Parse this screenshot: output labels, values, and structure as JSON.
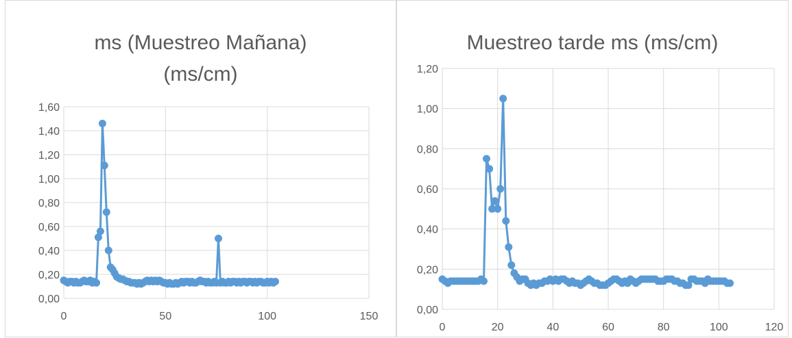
{
  "charts": [
    {
      "title_line1": "ms (Muestreo Mañana)",
      "title_line2": "(ms/cm)"
    },
    {
      "title_line1": "Muestreo tarde ms (ms/cm)"
    }
  ],
  "chart_data": [
    {
      "type": "scatter",
      "title": "ms (Muestreo Mañana) (ms/cm)",
      "xlim": [
        0,
        150
      ],
      "ylim": [
        0,
        1.6
      ],
      "xticks": [
        0,
        50,
        100,
        150
      ],
      "yticks": [
        0,
        0.2,
        0.4,
        0.6,
        0.8,
        1.0,
        1.2,
        1.4,
        1.6
      ],
      "x_tick_labels": [
        "0",
        "50",
        "100",
        "150"
      ],
      "y_tick_labels": [
        "0,00",
        "0,20",
        "0,40",
        "0,60",
        "0,80",
        "1,00",
        "1,20",
        "1,40",
        "1,60"
      ],
      "grid": true,
      "legend": "none",
      "color": "#5b9bd5",
      "series": [
        {
          "x": [
            0,
            1,
            2,
            3,
            4,
            5,
            6,
            7,
            8,
            9,
            10,
            11,
            12,
            13,
            14,
            15,
            16,
            17,
            18,
            19,
            20,
            21,
            22,
            23,
            24,
            25,
            26,
            27,
            28,
            29,
            30,
            31,
            32,
            33,
            34,
            35,
            36,
            37,
            38,
            39,
            40,
            41,
            42,
            43,
            44,
            45,
            46,
            47,
            48,
            49,
            50,
            51,
            52,
            53,
            54,
            55,
            56,
            57,
            58,
            59,
            60,
            61,
            62,
            63,
            64,
            65,
            66,
            67,
            68,
            69,
            70,
            71,
            72,
            73,
            74,
            75,
            76,
            77,
            78,
            79,
            80,
            81,
            82,
            83,
            84,
            85,
            86,
            87,
            88,
            89,
            90,
            91,
            92,
            93,
            94,
            95,
            96,
            97,
            98,
            99,
            100,
            101,
            102,
            103,
            104
          ],
          "y": [
            0.15,
            0.14,
            0.13,
            0.14,
            0.14,
            0.13,
            0.14,
            0.13,
            0.13,
            0.14,
            0.15,
            0.14,
            0.14,
            0.15,
            0.13,
            0.14,
            0.13,
            0.51,
            0.56,
            1.46,
            1.11,
            0.72,
            0.4,
            0.26,
            0.24,
            0.21,
            0.18,
            0.17,
            0.16,
            0.16,
            0.15,
            0.14,
            0.14,
            0.13,
            0.13,
            0.13,
            0.12,
            0.13,
            0.12,
            0.13,
            0.14,
            0.15,
            0.14,
            0.15,
            0.14,
            0.15,
            0.14,
            0.15,
            0.14,
            0.13,
            0.13,
            0.12,
            0.13,
            0.12,
            0.12,
            0.13,
            0.12,
            0.13,
            0.14,
            0.13,
            0.14,
            0.14,
            0.13,
            0.14,
            0.13,
            0.13,
            0.14,
            0.15,
            0.14,
            0.14,
            0.13,
            0.14,
            0.13,
            0.13,
            0.14,
            0.13,
            0.5,
            0.13,
            0.14,
            0.13,
            0.13,
            0.14,
            0.13,
            0.14,
            0.14,
            0.13,
            0.14,
            0.13,
            0.14,
            0.14,
            0.13,
            0.14,
            0.14,
            0.13,
            0.14,
            0.13,
            0.14,
            0.14,
            0.13,
            0.13,
            0.14,
            0.13,
            0.14,
            0.13,
            0.14
          ]
        }
      ]
    },
    {
      "type": "scatter",
      "title": "Muestreo tarde ms (ms/cm)",
      "xlim": [
        0,
        120
      ],
      "ylim": [
        0,
        1.2
      ],
      "xticks": [
        0,
        20,
        40,
        60,
        80,
        100,
        120
      ],
      "yticks": [
        0,
        0.2,
        0.4,
        0.6,
        0.8,
        1.0,
        1.2
      ],
      "x_tick_labels": [
        "0",
        "20",
        "40",
        "60",
        "80",
        "100",
        "120"
      ],
      "y_tick_labels": [
        "0,00",
        "0,20",
        "0,40",
        "0,60",
        "0,80",
        "1,00",
        "1,20"
      ],
      "grid": true,
      "legend": "none",
      "color": "#5b9bd5",
      "series": [
        {
          "x": [
            0,
            1,
            2,
            3,
            4,
            5,
            6,
            7,
            8,
            9,
            10,
            11,
            12,
            13,
            14,
            15,
            16,
            17,
            18,
            19,
            20,
            21,
            22,
            23,
            24,
            25,
            26,
            27,
            28,
            29,
            30,
            31,
            32,
            33,
            34,
            35,
            36,
            37,
            38,
            39,
            40,
            41,
            42,
            43,
            44,
            45,
            46,
            47,
            48,
            49,
            50,
            51,
            52,
            53,
            54,
            55,
            56,
            57,
            58,
            59,
            60,
            61,
            62,
            63,
            64,
            65,
            66,
            67,
            68,
            69,
            70,
            71,
            72,
            73,
            74,
            75,
            76,
            77,
            78,
            79,
            80,
            81,
            82,
            83,
            84,
            85,
            86,
            87,
            88,
            89,
            90,
            91,
            92,
            93,
            94,
            95,
            96,
            97,
            98,
            99,
            100,
            101,
            102,
            103,
            104
          ],
          "y": [
            0.15,
            0.14,
            0.13,
            0.14,
            0.14,
            0.14,
            0.14,
            0.14,
            0.14,
            0.14,
            0.14,
            0.14,
            0.14,
            0.14,
            0.15,
            0.14,
            0.75,
            0.7,
            0.5,
            0.54,
            0.5,
            0.6,
            1.05,
            0.44,
            0.31,
            0.22,
            0.18,
            0.16,
            0.14,
            0.15,
            0.15,
            0.13,
            0.12,
            0.13,
            0.12,
            0.13,
            0.13,
            0.14,
            0.14,
            0.15,
            0.14,
            0.15,
            0.14,
            0.15,
            0.15,
            0.14,
            0.13,
            0.14,
            0.13,
            0.13,
            0.12,
            0.13,
            0.14,
            0.15,
            0.14,
            0.13,
            0.13,
            0.12,
            0.12,
            0.12,
            0.13,
            0.14,
            0.15,
            0.15,
            0.14,
            0.13,
            0.14,
            0.13,
            0.15,
            0.14,
            0.13,
            0.14,
            0.15,
            0.15,
            0.15,
            0.15,
            0.15,
            0.15,
            0.14,
            0.14,
            0.14,
            0.15,
            0.15,
            0.15,
            0.14,
            0.14,
            0.13,
            0.13,
            0.12,
            0.12,
            0.15,
            0.15,
            0.14,
            0.14,
            0.14,
            0.13,
            0.15,
            0.14,
            0.14,
            0.14,
            0.14,
            0.14,
            0.14,
            0.13,
            0.13
          ]
        }
      ]
    }
  ]
}
